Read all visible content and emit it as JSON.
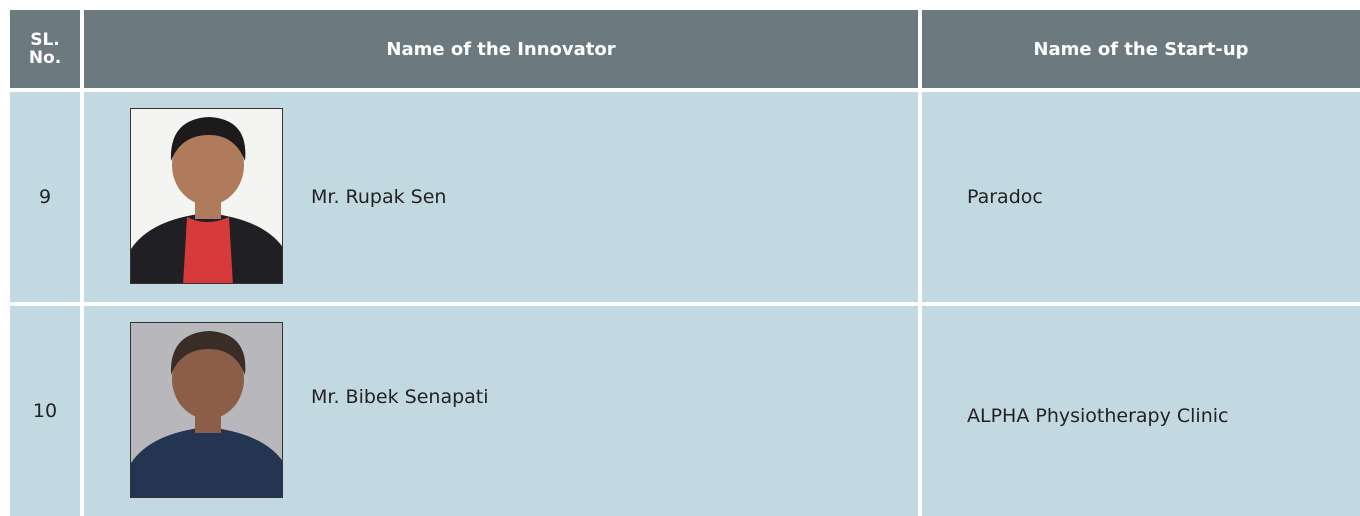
{
  "table": {
    "headers": [
      "SL. No.",
      "Name of the Innovator",
      "Name of the Start-up"
    ],
    "rows": [
      [
        9,
        "Mr. Rupak Sen",
        "Paradoc"
      ],
      [
        10,
        "Mr. Bibek Senapati",
        "ALPHA Physiotherapy Clinic"
      ]
    ]
  }
}
